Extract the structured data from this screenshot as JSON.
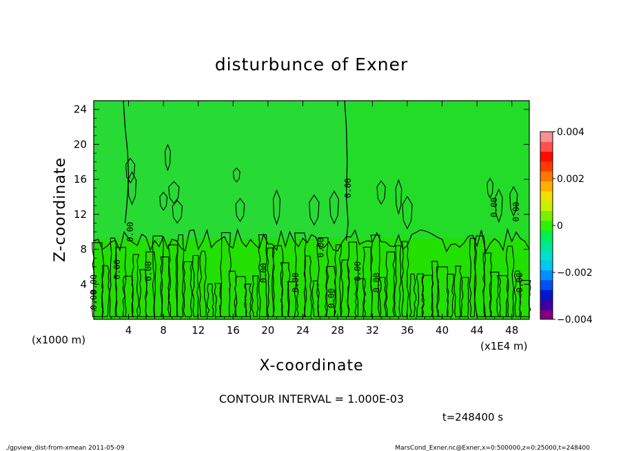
{
  "chart_data": {
    "type": "heatmap",
    "title": "disturbunce of Exner",
    "xlabel": "X-coordinate",
    "ylabel": "Z-coordinate",
    "x_scale_label": "(x1000 m)",
    "x_multiplier_label": "(x1E4 m)",
    "x_ticks": [
      4,
      8,
      12,
      16,
      20,
      24,
      28,
      32,
      36,
      40,
      44,
      48
    ],
    "y_ticks": [
      4,
      8,
      12,
      16,
      20,
      24
    ],
    "xlim": [
      0,
      50
    ],
    "ylim": [
      0,
      25
    ],
    "contour_interval_text": "CONTOUR INTERVAL = 1.000E-03",
    "time_text": "t=248400 s",
    "contour_label": "0.00",
    "colorbar": {
      "ticks": [
        "0.004",
        "0.002",
        "0",
        "−0.002",
        "−0.004"
      ],
      "tick_values": [
        0.004,
        0.002,
        0,
        -0.002,
        -0.004
      ],
      "range": [
        -0.004,
        0.004
      ],
      "colors": [
        "#800080",
        "#3a00a6",
        "#0018cc",
        "#0050f0",
        "#0090ff",
        "#00c8f0",
        "#00e0c8",
        "#00e890",
        "#00f050",
        "#2ef000",
        "#7af000",
        "#c8f000",
        "#f0e000",
        "#ffb000",
        "#ff7800",
        "#ff3c00",
        "#ff0a00",
        "#ff5050",
        "#ff9090"
      ]
    },
    "field_summary": {
      "upper_region_value": "slightly negative (~-0.0003)",
      "lower_region_value": "mixed, near 0",
      "boundary_height_approx": 9
    }
  },
  "footer": {
    "left": "./gpview_dist-from-xmean  2011-05-09",
    "right": "MarsCond_Exner.nc@Exner,x=0:500000,z=0:25000,t=248400"
  }
}
